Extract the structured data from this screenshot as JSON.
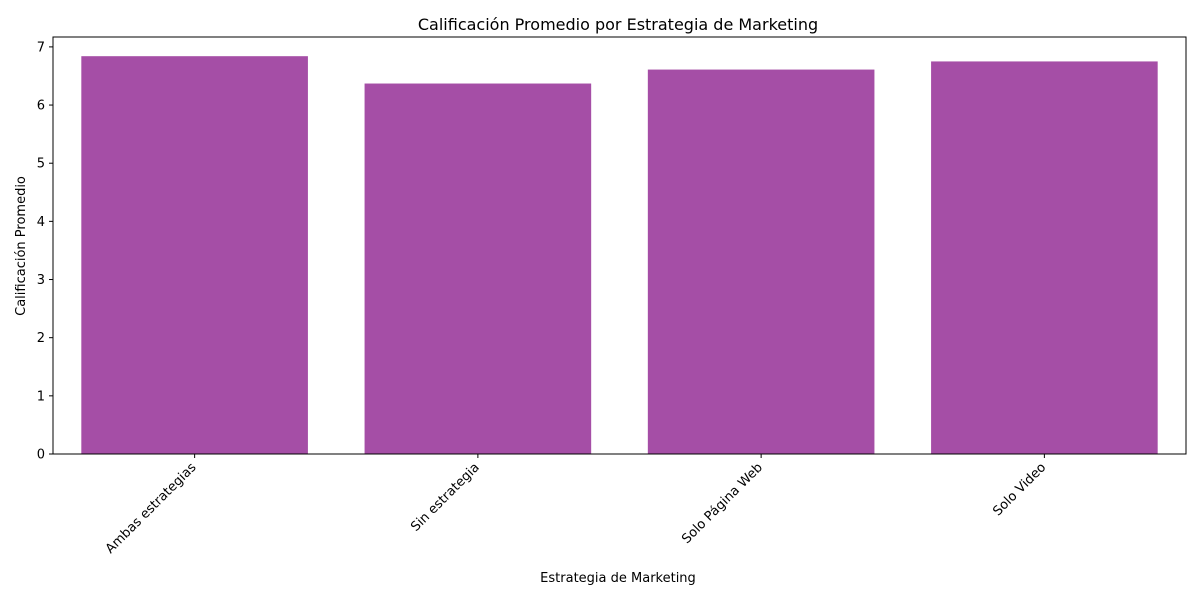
{
  "chart_data": {
    "type": "bar",
    "title": "Calificación Promedio por Estrategia de Marketing",
    "xlabel": "Estrategia de Marketing",
    "ylabel": "Calificación Promedio",
    "categories": [
      "Ambas estrategias",
      "Sin estrategia",
      "Solo Página Web",
      "Solo Video"
    ],
    "values": [
      6.84,
      6.37,
      6.61,
      6.75
    ],
    "ylim": [
      0,
      7.17
    ],
    "yticks": [
      "0",
      "1",
      "2",
      "3",
      "4",
      "5",
      "6",
      "7"
    ],
    "bar_color": "#a54ea6",
    "grid": false,
    "legend": "none"
  }
}
